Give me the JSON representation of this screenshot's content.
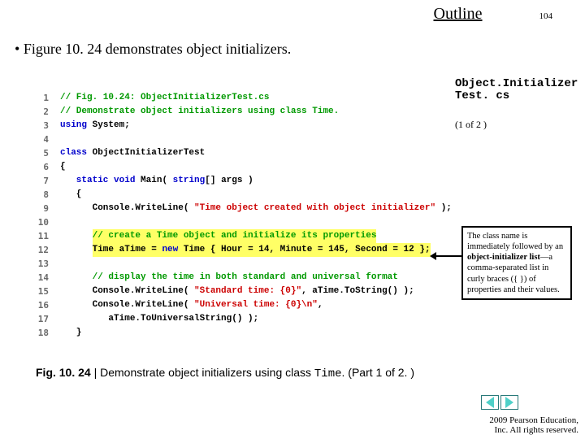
{
  "header": {
    "outline": "Outline",
    "page": "104"
  },
  "bullet": "Figure 10. 24 demonstrates object initializers.",
  "rightLabel": {
    "line1": "Object.Initializer",
    "line2": "Test. cs"
  },
  "rightNote": "(1 of 2 )",
  "code": {
    "l1a": "// Fig. 10.24: ObjectInitializerTest.cs",
    "l2a": "// Demonstrate object initializers using class Time.",
    "l3a": "using",
    "l3b": " System;",
    "l5a": "class",
    "l5b": " ObjectInitializerTest",
    "l6a": "{",
    "l7a": "   static",
    "l7b": " void",
    "l7c": " Main( ",
    "l7d": "string",
    "l7e": "[] args )",
    "l8a": "   {",
    "l9a": "      Console.WriteLine( ",
    "l9b": "\"Time object created with object initializer\"",
    "l9c": " );",
    "l11a": "      ",
    "l11b": "// create a Time object and initialize its properties",
    "l12a": "      ",
    "l12b": "Time aTime = ",
    "l12c": "new",
    "l12d": " Time { Hour = ",
    "l12e": "14",
    "l12f": ", Minute = ",
    "l12g": "145",
    "l12h": ", Second = ",
    "l12i": "12",
    "l12j": " };",
    "l14a": "      // display the time in both standard and universal format",
    "l15a": "      Console.WriteLine( ",
    "l15b": "\"Standard time: {0}\"",
    "l15c": ", aTime.ToString() );",
    "l16a": "      Console.WriteLine( ",
    "l16b": "\"Universal time: {0}\\n\"",
    "l16c": ",",
    "l17a": "         aTime.ToUniversalString() );",
    "l18a": "   }"
  },
  "callout": {
    "t1": "The class name is immediately followed by an ",
    "bold": "object-initializer list",
    "t2": "—a comma-separated list in curly braces ({ }) of properties and their values."
  },
  "caption": {
    "label": "Fig. 10. 24 ",
    "sep": "| ",
    "text": "Demonstrate object initializers using class ",
    "mono": "Time",
    "tail": ". (Part 1 of 2. )"
  },
  "copyright": {
    "l1": " 2009 Pearson Education,",
    "l2": "Inc. All rights reserved."
  }
}
